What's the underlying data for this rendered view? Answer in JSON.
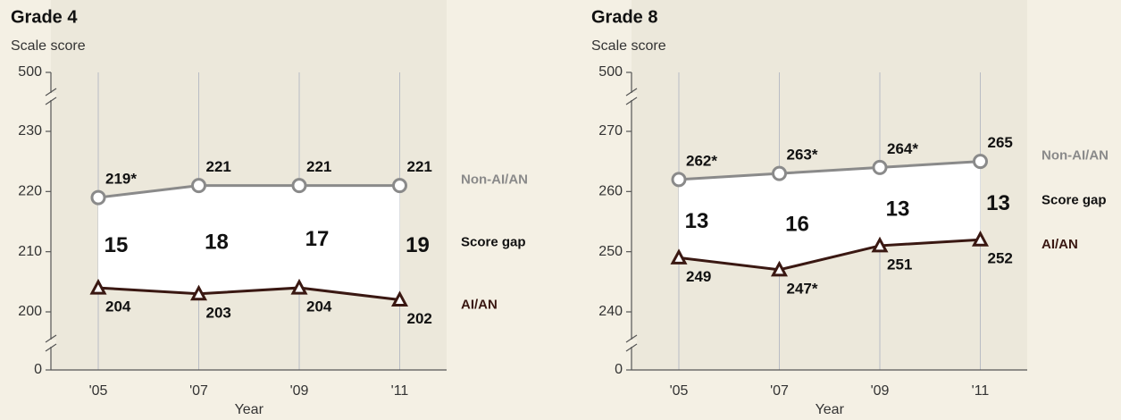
{
  "chart_data": [
    {
      "type": "line",
      "title": "Grade 4",
      "y_label": "Scale score",
      "x_label": "Year",
      "categories": [
        "'05",
        "'07",
        "'09",
        "'11"
      ],
      "ylim": [
        0,
        500
      ],
      "yticks": [
        0,
        200,
        210,
        220,
        230,
        500
      ],
      "broken_axis": true,
      "grid": true,
      "series": [
        {
          "name": "Non-AI/AN",
          "color": "#8a8a8a",
          "marker": "circle",
          "values": [
            219,
            221,
            221,
            221
          ],
          "value_labels": [
            "219*",
            "221",
            "221",
            "221"
          ]
        },
        {
          "name": "AI/AN",
          "color": "#3a1812",
          "marker": "triangle",
          "values": [
            204,
            203,
            204,
            202
          ],
          "value_labels": [
            "204",
            "203",
            "204",
            "202"
          ]
        }
      ],
      "score_gap": {
        "name": "Score gap",
        "values": [
          15,
          18,
          17,
          19
        ]
      }
    },
    {
      "type": "line",
      "title": "Grade 8",
      "y_label": "Scale score",
      "x_label": "Year",
      "categories": [
        "'05",
        "'07",
        "'09",
        "'11"
      ],
      "ylim": [
        0,
        500
      ],
      "yticks": [
        0,
        240,
        250,
        260,
        270,
        500
      ],
      "broken_axis": true,
      "grid": true,
      "series": [
        {
          "name": "Non-AI/AN",
          "color": "#8a8a8a",
          "marker": "circle",
          "values": [
            262,
            263,
            264,
            265
          ],
          "value_labels": [
            "262*",
            "263*",
            "264*",
            "265"
          ]
        },
        {
          "name": "AI/AN",
          "color": "#3a1812",
          "marker": "triangle",
          "values": [
            249,
            247,
            251,
            252
          ],
          "value_labels": [
            "249",
            "247*",
            "251",
            "252"
          ]
        }
      ],
      "score_gap": {
        "name": "Score gap",
        "values": [
          13,
          16,
          13,
          13
        ]
      }
    }
  ]
}
